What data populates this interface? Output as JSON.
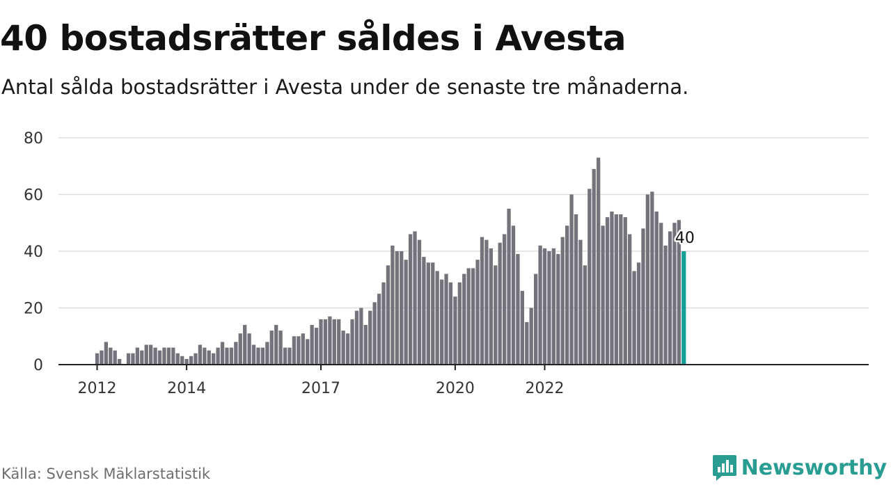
{
  "title": "40 bostadsrätter såldes i Avesta",
  "subtitle": "Antal sålda bostadsrätter i Avesta under de senaste tre månaderna.",
  "source": "Källa: Svensk Mäklarstatistik",
  "brand": {
    "name": "Newsworthy",
    "logo_icon": "newsworthy-chart-bubble-icon"
  },
  "colors": {
    "bar": "#74737c",
    "highlight": "#139e96",
    "grid": "#dddddd",
    "axis": "#222222",
    "brand": "#2a9d93"
  },
  "chart_data": {
    "type": "bar",
    "title": "40 bostadsrätter såldes i Avesta",
    "xlabel": "",
    "ylabel": "",
    "ylim": [
      0,
      80
    ],
    "yticks": [
      0,
      20,
      40,
      60,
      80
    ],
    "grid": true,
    "x_tick_labels": [
      {
        "label": "2012",
        "index": 0
      },
      {
        "label": "2014",
        "index": 20
      },
      {
        "label": "2017",
        "index": 50
      },
      {
        "label": "2020",
        "index": 80
      },
      {
        "label": "2022",
        "index": 100
      }
    ],
    "values": [
      4,
      5,
      8,
      6,
      5,
      2,
      0,
      4,
      4,
      6,
      5,
      7,
      7,
      6,
      5,
      6,
      6,
      6,
      4,
      3,
      2,
      3,
      4,
      7,
      6,
      5,
      4,
      6,
      8,
      6,
      6,
      8,
      11,
      14,
      11,
      7,
      6,
      6,
      8,
      12,
      14,
      12,
      6,
      6,
      10,
      10,
      11,
      9,
      14,
      13,
      16,
      16,
      17,
      16,
      16,
      12,
      11,
      16,
      19,
      20,
      14,
      19,
      22,
      25,
      29,
      35,
      42,
      40,
      40,
      37,
      46,
      47,
      44,
      38,
      36,
      36,
      33,
      30,
      32,
      29,
      24,
      29,
      32,
      34,
      34,
      37,
      45,
      44,
      41,
      35,
      43,
      46,
      55,
      49,
      39,
      26,
      15,
      20,
      32,
      42,
      41,
      40,
      41,
      39,
      45,
      49,
      60,
      53,
      44,
      35,
      62,
      69,
      73,
      49,
      52,
      54,
      53,
      53,
      52,
      46,
      33,
      36,
      48,
      60,
      61,
      54,
      50,
      42,
      47,
      50,
      51,
      40
    ],
    "highlight_index": 131,
    "highlight_label": "40"
  }
}
